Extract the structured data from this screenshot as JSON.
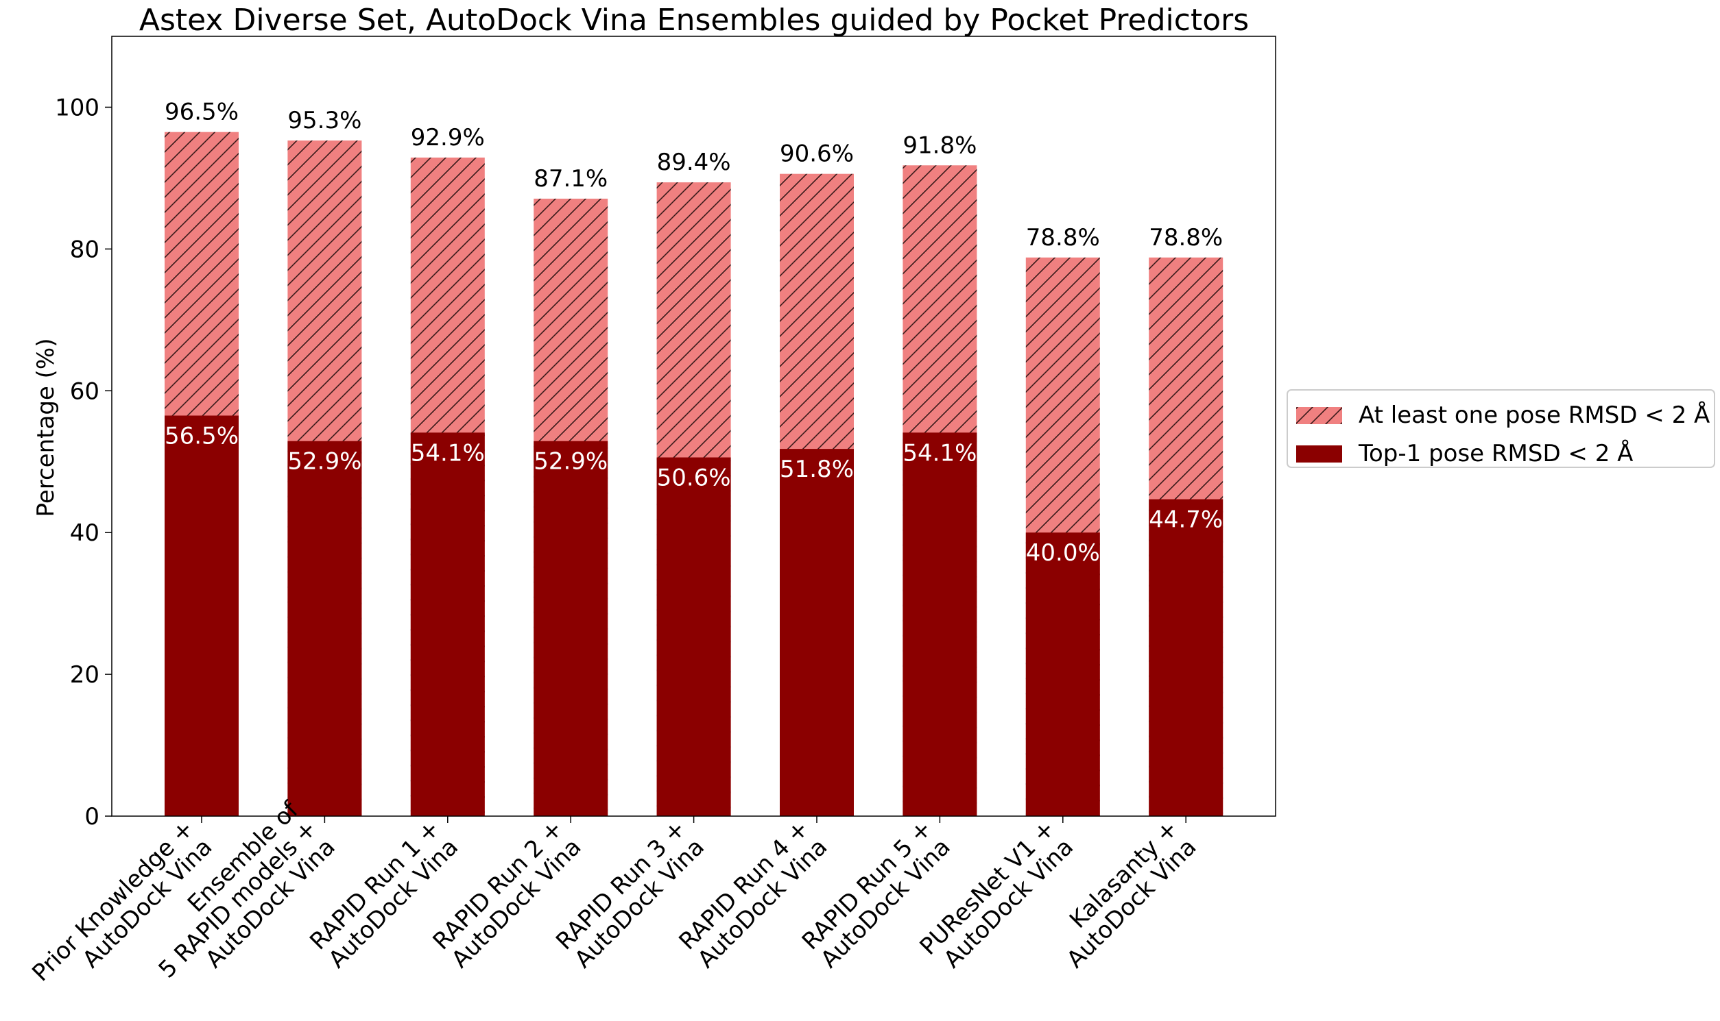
{
  "chart_data": {
    "type": "bar",
    "stacked": "overlay",
    "title": "Astex Diverse Set, AutoDock Vina Ensembles guided by Pocket Predictors",
    "xlabel": "",
    "ylabel": "Percentage (%)",
    "ylim": [
      0,
      110
    ],
    "yticks": [
      0,
      20,
      40,
      60,
      80,
      100
    ],
    "grid": false,
    "legend_position": "right",
    "categories": [
      [
        "Prior Knowledge +",
        "AutoDock Vina"
      ],
      [
        "Ensemble of",
        "5 RAPID models +",
        "AutoDock Vina"
      ],
      [
        "RAPID Run 1 +",
        "AutoDock Vina"
      ],
      [
        "RAPID Run 2 +",
        "AutoDock Vina"
      ],
      [
        "RAPID Run 3 +",
        "AutoDock Vina"
      ],
      [
        "RAPID Run 4 +",
        "AutoDock Vina"
      ],
      [
        "RAPID Run 5 +",
        "AutoDock Vina"
      ],
      [
        "PUResNet V1 +",
        "AutoDock Vina"
      ],
      [
        "Kalasanty +",
        "AutoDock Vina"
      ]
    ],
    "series": [
      {
        "name": "At least one pose RMSD < 2 Å",
        "color": "#f08080",
        "hatch": true,
        "values": [
          96.5,
          95.3,
          92.9,
          87.1,
          89.4,
          90.6,
          91.8,
          78.8,
          78.8
        ],
        "labels": [
          "96.5%",
          "95.3%",
          "92.9%",
          "87.1%",
          "89.4%",
          "90.6%",
          "91.8%",
          "78.8%",
          "78.8%"
        ]
      },
      {
        "name": "Top-1 pose RMSD < 2 Å",
        "color": "#8b0000",
        "hatch": false,
        "values": [
          56.5,
          52.9,
          54.1,
          52.9,
          50.6,
          51.8,
          54.1,
          40.0,
          44.7
        ],
        "labels": [
          "56.5%",
          "52.9%",
          "54.1%",
          "52.9%",
          "50.6%",
          "51.8%",
          "54.1%",
          "40.0%",
          "44.7%"
        ]
      }
    ]
  }
}
